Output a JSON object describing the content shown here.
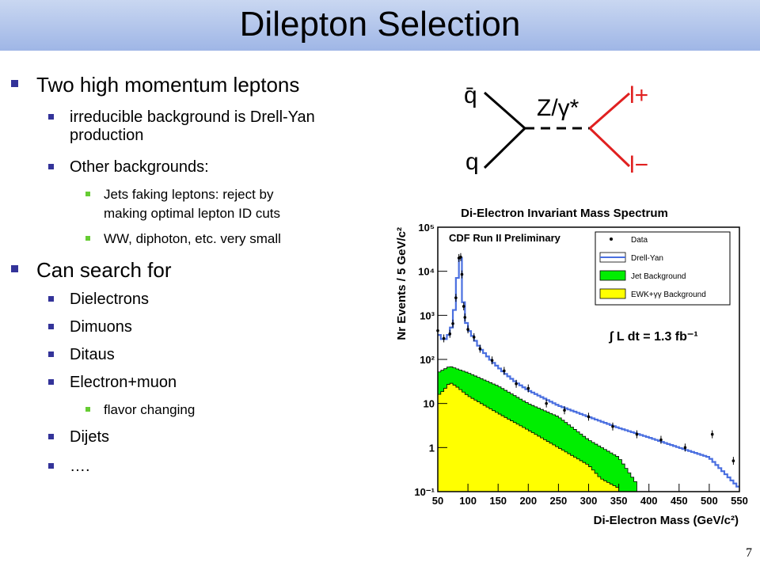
{
  "slide": {
    "title": "Dilepton Selection",
    "page_number": "7",
    "bullets": [
      {
        "level": 1,
        "text": "Two high momentum leptons"
      },
      {
        "level": 2,
        "text": "irreducible background is Drell-Yan"
      },
      {
        "level": 2,
        "text": "production",
        "continuation": true
      },
      {
        "level": 2,
        "text": "Other backgrounds:"
      },
      {
        "level": 3,
        "text": "Jets faking leptons: reject by"
      },
      {
        "level": 3,
        "text": "making optimal lepton ID cuts",
        "continuation": true
      },
      {
        "level": 3,
        "text": "WW, diphoton, etc. very small"
      },
      {
        "level": 1,
        "text": "Can search for"
      },
      {
        "level": 2,
        "text": "Dielectrons"
      },
      {
        "level": 2,
        "text": "Dimuons"
      },
      {
        "level": 2,
        "text": "Ditaus"
      },
      {
        "level": 2,
        "text": "Electron+muon"
      },
      {
        "level": 3,
        "text": "flavor changing"
      },
      {
        "level": 2,
        "text": "Dijets"
      },
      {
        "level": 2,
        "text": "…."
      }
    ],
    "colors": {
      "title_bar": "#a9bee9",
      "bullet_l1": "#333399",
      "bullet_l3": "#66cc33"
    }
  },
  "feynman": {
    "q_bar": "q̄",
    "q": "q",
    "boson": "Z/γ*",
    "l_plus": "l+",
    "l_minus": "l−",
    "lepton_color": "#e02020"
  },
  "chart_data": {
    "type": "histogram",
    "title": "Di-Electron Invariant Mass Spectrum",
    "subtitle": "CDF Run II Preliminary",
    "xlabel": "Di-Electron Mass (GeV/c²)",
    "ylabel": "Nr Events / 5 GeV/c²",
    "xlim": [
      50,
      550
    ],
    "ylim": [
      0.1,
      100000
    ],
    "y_scale": "log",
    "x_ticks": [
      "50",
      "100",
      "150",
      "200",
      "250",
      "300",
      "350",
      "400",
      "450",
      "500",
      "550"
    ],
    "y_ticks": [
      "10⁻¹",
      "1",
      "10",
      "10²",
      "10³",
      "10⁴",
      "10⁵"
    ],
    "legend": [
      {
        "label": "Data",
        "color": "#000000",
        "kind": "marker"
      },
      {
        "label": "Drell-Yan",
        "color": "#4a6fe0",
        "kind": "line"
      },
      {
        "label": "Jet Background",
        "color": "#00ee00",
        "kind": "fill"
      },
      {
        "label": "EWK+γγ Background",
        "color": "#ffff00",
        "kind": "fill"
      }
    ],
    "annotation": "∫ L dt = 1.3 fb⁻¹",
    "series": [
      {
        "name": "Drell-Yan",
        "x": [
          50,
          60,
          70,
          75,
          80,
          85,
          88,
          90,
          93,
          95,
          100,
          110,
          120,
          140,
          160,
          180,
          200,
          250,
          300,
          350,
          400,
          450,
          500,
          550
        ],
        "y": [
          400,
          260,
          400,
          700,
          2500,
          20000,
          20000,
          8000,
          1500,
          900,
          500,
          300,
          180,
          90,
          50,
          30,
          20,
          9,
          5,
          2.8,
          1.7,
          1.0,
          0.6,
          0.12
        ]
      },
      {
        "name": "Jet Background",
        "x": [
          50,
          70,
          100,
          150,
          200,
          250,
          300,
          350,
          380
        ],
        "y": [
          50,
          70,
          50,
          25,
          10,
          5,
          1.5,
          0.6,
          0.15
        ]
      },
      {
        "name": "EWK+γγ Background",
        "x": [
          50,
          60,
          70,
          80,
          100,
          150,
          200,
          250,
          300,
          320,
          350
        ],
        "y": [
          15,
          20,
          30,
          25,
          15,
          6,
          2.5,
          1,
          0.4,
          0.2,
          0.12
        ]
      },
      {
        "name": "Data",
        "x": [
          50,
          60,
          70,
          75,
          80,
          85,
          88,
          90,
          93,
          95,
          100,
          110,
          120,
          140,
          160,
          180,
          200,
          230,
          260,
          300,
          340,
          380,
          420,
          460,
          505,
          540
        ],
        "y": [
          450,
          300,
          380,
          650,
          2500,
          20000,
          21000,
          8500,
          1600,
          900,
          480,
          320,
          175,
          95,
          55,
          28,
          22,
          10,
          7,
          5,
          3,
          2,
          1.5,
          1,
          2,
          0.5
        ]
      }
    ]
  }
}
